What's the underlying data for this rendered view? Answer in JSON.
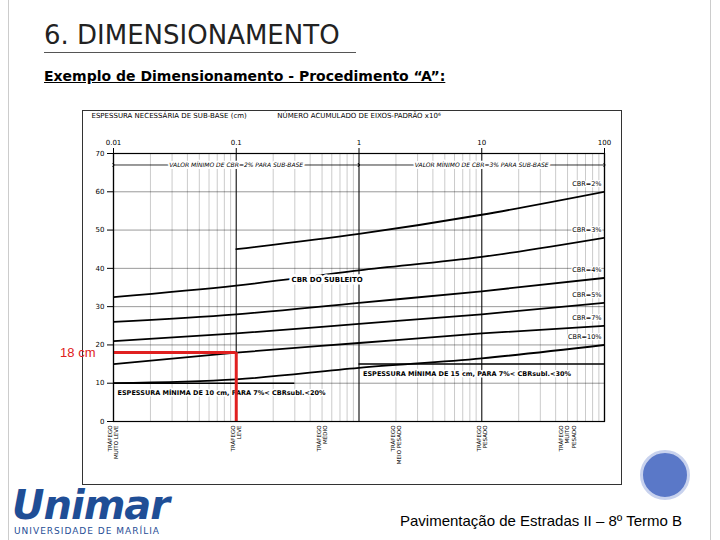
{
  "slide": {
    "title": "6. DIMENSIONAMENTO",
    "subtitle": "Exemplo de Dimensionamento - Procedimento “A”:",
    "footer": "Pavimentação de Estradas II – 8º Termo B",
    "logo": {
      "name": "Unimar",
      "subtitle": "UNIVERSIDADE DE MARÍLIA"
    }
  },
  "chart_data": {
    "type": "line",
    "x_label": "NÚMERO ACUMULADO DE EIXOS-PADRÃO x10⁶",
    "y_label": "ESPESSURA NECESSÁRIA DE SUB-BASE (cm)",
    "log": "x",
    "grid": true,
    "xlim": [
      0.01,
      100
    ],
    "xticks": [
      0.01,
      0.1,
      1,
      10,
      100
    ],
    "ylim": [
      0,
      70
    ],
    "yticks": [
      0,
      10,
      20,
      30,
      40,
      50,
      60,
      70
    ],
    "x": [
      0.01,
      0.1,
      1,
      10,
      100
    ],
    "series": [
      {
        "name": "CBR=2%",
        "color": "#000000",
        "values": [
          null,
          45,
          49,
          54,
          60
        ]
      },
      {
        "name": "CBR=3%",
        "color": "#000000",
        "values": [
          32.5,
          35.5,
          39.5,
          43,
          48
        ]
      },
      {
        "name": "CBR=4%",
        "color": "#000000",
        "values": [
          26,
          28,
          31,
          34,
          37.5
        ]
      },
      {
        "name": "CBR=5%",
        "color": "#000000",
        "values": [
          21,
          23,
          25.5,
          28,
          31
        ]
      },
      {
        "name": "CBR=7%",
        "color": "#000000",
        "values": [
          15,
          18,
          20.5,
          23,
          25
        ]
      },
      {
        "name": "CBR=10%",
        "color": "#000000",
        "values": [
          10,
          11,
          14,
          16.5,
          20
        ]
      }
    ],
    "annotations": [
      {
        "text": "CBR DO SUBLEITO",
        "x": 0.55,
        "y": 37
      }
    ],
    "ranges": [
      {
        "text": "VALOR MÍNIMO DE CBR=2% PARA SUB-BASE",
        "x1": 0.01,
        "x2": 1,
        "y": 67
      },
      {
        "text": "VALOR MÍNIMO DE CBR=3% PARA SUB-BASE",
        "x1": 1,
        "x2": 100,
        "y": 67
      }
    ],
    "minimum_lines": [
      {
        "text": "ESPESSURA MÍNIMA DE 10 cm, PARA 7%< CBRsubl.<20%",
        "x1": 0.01,
        "x2": 0.3,
        "y": 10
      },
      {
        "text": "ESPESSURA MÍNIMA DE 15 cm, PARA 7%< CBRsubl.<30%",
        "x1": 1,
        "x2": 100,
        "y": 15
      }
    ],
    "traffic": [
      {
        "text": "TRÁFEGO\nMUITO LEVE",
        "x": 0.01
      },
      {
        "text": "TRÁFEGO\nLEVE",
        "x": 0.1
      },
      {
        "text": "TRÁFEGO\nMÉDIO",
        "x": 0.5
      },
      {
        "text": "TRÁFEGO\nMEIO PESADO",
        "x": 2
      },
      {
        "text": "TRÁFEGO\nPESADO",
        "x": 10
      },
      {
        "text": "TRÁFEGO\nMUITO\nPESADO",
        "x": 50
      }
    ],
    "highlight": {
      "text": "18 cm",
      "x": 0.1,
      "y": 18,
      "color": "#e02020"
    }
  }
}
